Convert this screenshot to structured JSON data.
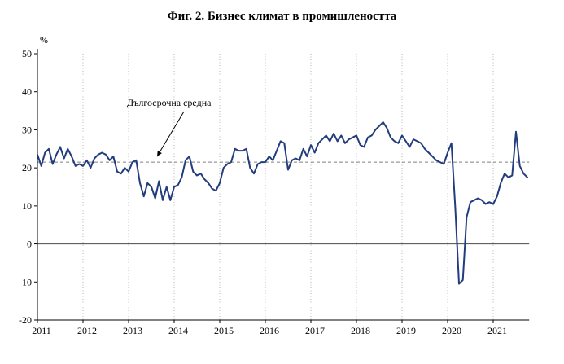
{
  "chart_data": {
    "type": "line",
    "title": "Фиг. 2. Бизнес климат в промишлеността",
    "ylabel": "%",
    "ylim": [
      -20,
      50
    ],
    "yticks": [
      50,
      40,
      30,
      20,
      10,
      0,
      -10,
      -20
    ],
    "x_ticks": [
      "2011",
      "2012",
      "2013",
      "2014",
      "2015",
      "2016",
      "2017",
      "2018",
      "2019",
      "2020",
      "2021"
    ],
    "x_domain": [
      2011,
      2021.79
    ],
    "grid": "vertical-dotted",
    "zero_line": true,
    "legend": "none",
    "reference_line": {
      "label": "Дългосрочна средна",
      "value": 21.5,
      "style": "dashed",
      "color": "#808080"
    },
    "annotation": {
      "label": "Дългосрочна средна",
      "points_to_value": 21.5
    },
    "series": [
      {
        "name": "Бизнес климат в промишлеността",
        "color": "#223c7e",
        "start_year": 2011,
        "start_month": 1,
        "frequency": "monthly",
        "values": [
          23.5,
          20.5,
          24.0,
          25.0,
          21.0,
          23.5,
          25.5,
          22.5,
          25.0,
          23.0,
          20.5,
          21.0,
          20.5,
          22.0,
          20.0,
          22.5,
          23.5,
          24.0,
          23.5,
          22.0,
          23.0,
          19.0,
          18.5,
          20.0,
          19.0,
          21.5,
          22.0,
          16.0,
          12.5,
          16.0,
          15.0,
          12.0,
          16.5,
          11.5,
          15.0,
          11.5,
          15.0,
          15.5,
          17.5,
          22.0,
          23.0,
          19.0,
          18.0,
          18.5,
          17.0,
          16.0,
          14.5,
          14.0,
          16.0,
          20.0,
          21.0,
          21.5,
          25.0,
          24.5,
          24.5,
          25.0,
          20.0,
          18.5,
          21.0,
          21.5,
          21.5,
          23.0,
          22.0,
          24.5,
          27.0,
          26.5,
          19.5,
          22.0,
          22.5,
          22.0,
          25.0,
          23.0,
          26.0,
          24.0,
          26.5,
          27.5,
          28.5,
          27.0,
          29.0,
          27.0,
          28.5,
          26.5,
          27.5,
          28.0,
          28.5,
          26.0,
          25.5,
          28.0,
          28.5,
          30.0,
          31.0,
          32.0,
          30.5,
          28.0,
          27.0,
          26.5,
          28.5,
          27.0,
          25.5,
          27.5,
          27.0,
          26.5,
          25.0,
          24.0,
          23.0,
          22.0,
          21.5,
          21.0,
          24.0,
          26.5,
          10.0,
          -10.5,
          -9.5,
          7.0,
          11.0,
          11.5,
          12.0,
          11.5,
          10.5,
          11.0,
          10.5,
          12.5,
          16.0,
          18.5,
          17.5,
          18.0,
          29.5,
          20.5,
          18.5,
          17.5
        ]
      }
    ]
  },
  "style": {
    "gridline_color": "#b3b3b3",
    "zero_line_color": "#4a4a4a",
    "axis_color": "#000000"
  }
}
